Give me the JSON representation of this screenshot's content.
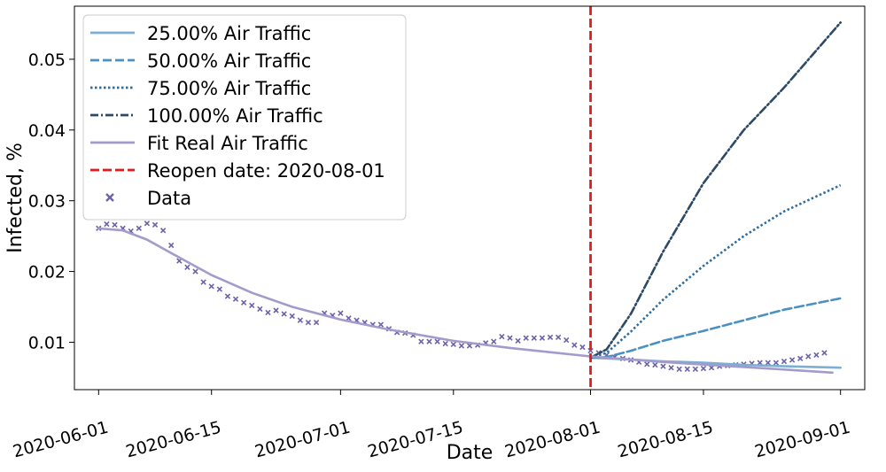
{
  "chart_data": {
    "type": "line",
    "title": "",
    "xlabel": "Date",
    "ylabel": "Infected, %",
    "xlim": [
      "2020-05-29",
      "2020-09-04"
    ],
    "ylim": [
      0.0033,
      0.0575
    ],
    "x_ticks": [
      "2020-06-01",
      "2020-06-15",
      "2020-07-01",
      "2020-07-15",
      "2020-08-01",
      "2020-08-15",
      "2020-09-01"
    ],
    "y_ticks": [
      0.01,
      0.02,
      0.03,
      0.04,
      0.05
    ],
    "y_tick_labels": [
      "0.01",
      "0.02",
      "0.03",
      "0.04",
      "0.05"
    ],
    "grid": false,
    "legend_position": "top-left",
    "reopen_date": "2020-08-01",
    "series": [
      {
        "name": "25.00% Air Traffic",
        "style": "solid",
        "color": "#7bafd4",
        "points": [
          [
            "2020-08-01",
            0.0078
          ],
          [
            "2020-08-05",
            0.0076
          ],
          [
            "2020-08-10",
            0.0073
          ],
          [
            "2020-08-15",
            0.0071
          ],
          [
            "2020-08-20",
            0.0068
          ],
          [
            "2020-08-25",
            0.0066
          ],
          [
            "2020-09-01",
            0.0064
          ]
        ]
      },
      {
        "name": "50.00% Air Traffic",
        "style": "dashed",
        "color": "#4a90c2",
        "points": [
          [
            "2020-08-01",
            0.0078
          ],
          [
            "2020-08-03",
            0.0079
          ],
          [
            "2020-08-06",
            0.0088
          ],
          [
            "2020-08-10",
            0.0102
          ],
          [
            "2020-08-15",
            0.0116
          ],
          [
            "2020-08-20",
            0.0131
          ],
          [
            "2020-08-25",
            0.0146
          ],
          [
            "2020-09-01",
            0.0162
          ]
        ]
      },
      {
        "name": "75.00% Air Traffic",
        "style": "dotted",
        "color": "#2e6d9e",
        "points": [
          [
            "2020-08-01",
            0.0078
          ],
          [
            "2020-08-03",
            0.0085
          ],
          [
            "2020-08-06",
            0.0115
          ],
          [
            "2020-08-10",
            0.016
          ],
          [
            "2020-08-15",
            0.0208
          ],
          [
            "2020-08-20",
            0.025
          ],
          [
            "2020-08-25",
            0.0285
          ],
          [
            "2020-09-01",
            0.0322
          ]
        ]
      },
      {
        "name": "100.00% Air Traffic",
        "style": "dashdot",
        "color": "#2c4a66",
        "points": [
          [
            "2020-08-01",
            0.0078
          ],
          [
            "2020-08-03",
            0.009
          ],
          [
            "2020-08-06",
            0.014
          ],
          [
            "2020-08-10",
            0.0228
          ],
          [
            "2020-08-15",
            0.0325
          ],
          [
            "2020-08-20",
            0.04
          ],
          [
            "2020-08-25",
            0.046
          ],
          [
            "2020-09-01",
            0.0552
          ]
        ]
      },
      {
        "name": "Fit Real Air Traffic",
        "style": "solid",
        "color": "#a39bcb",
        "points": [
          [
            "2020-06-01",
            0.0261
          ],
          [
            "2020-06-04",
            0.0258
          ],
          [
            "2020-06-07",
            0.0245
          ],
          [
            "2020-06-10",
            0.0226
          ],
          [
            "2020-06-15",
            0.0195
          ],
          [
            "2020-06-20",
            0.017
          ],
          [
            "2020-06-25",
            0.015
          ],
          [
            "2020-07-01",
            0.0132
          ],
          [
            "2020-07-07",
            0.0118
          ],
          [
            "2020-07-15",
            0.0102
          ],
          [
            "2020-07-22",
            0.0092
          ],
          [
            "2020-08-01",
            0.008
          ],
          [
            "2020-08-10",
            0.0072
          ],
          [
            "2020-08-20",
            0.0065
          ],
          [
            "2020-08-31",
            0.0057
          ]
        ]
      }
    ],
    "reopen_line": {
      "name": "Reopen date: 2020-08-01",
      "style": "dashed",
      "color": "#e8191b"
    },
    "data_series": {
      "name": "Data",
      "marker": "x",
      "color": "#6b63a8",
      "points": [
        [
          "2020-06-01",
          0.0261
        ],
        [
          "2020-06-02",
          0.0267
        ],
        [
          "2020-06-03",
          0.0266
        ],
        [
          "2020-06-04",
          0.0261
        ],
        [
          "2020-06-05",
          0.0257
        ],
        [
          "2020-06-06",
          0.0261
        ],
        [
          "2020-06-07",
          0.0268
        ],
        [
          "2020-06-08",
          0.0266
        ],
        [
          "2020-06-09",
          0.0258
        ],
        [
          "2020-06-10",
          0.0237
        ],
        [
          "2020-06-11",
          0.0215
        ],
        [
          "2020-06-12",
          0.0206
        ],
        [
          "2020-06-13",
          0.02
        ],
        [
          "2020-06-14",
          0.0185
        ],
        [
          "2020-06-15",
          0.0179
        ],
        [
          "2020-06-16",
          0.0175
        ],
        [
          "2020-06-17",
          0.0165
        ],
        [
          "2020-06-18",
          0.0161
        ],
        [
          "2020-06-19",
          0.0156
        ],
        [
          "2020-06-20",
          0.0152
        ],
        [
          "2020-06-21",
          0.0147
        ],
        [
          "2020-06-22",
          0.0142
        ],
        [
          "2020-06-23",
          0.0145
        ],
        [
          "2020-06-24",
          0.014
        ],
        [
          "2020-06-25",
          0.0137
        ],
        [
          "2020-06-26",
          0.0131
        ],
        [
          "2020-06-27",
          0.0128
        ],
        [
          "2020-06-28",
          0.0128
        ],
        [
          "2020-06-29",
          0.0141
        ],
        [
          "2020-06-30",
          0.0138
        ],
        [
          "2020-07-01",
          0.0141
        ],
        [
          "2020-07-02",
          0.0134
        ],
        [
          "2020-07-03",
          0.0131
        ],
        [
          "2020-07-04",
          0.0128
        ],
        [
          "2020-07-05",
          0.0125
        ],
        [
          "2020-07-06",
          0.0125
        ],
        [
          "2020-07-07",
          0.0119
        ],
        [
          "2020-07-08",
          0.0114
        ],
        [
          "2020-07-09",
          0.0113
        ],
        [
          "2020-07-10",
          0.011
        ],
        [
          "2020-07-11",
          0.0101
        ],
        [
          "2020-07-12",
          0.0101
        ],
        [
          "2020-07-13",
          0.0101
        ],
        [
          "2020-07-14",
          0.0098
        ],
        [
          "2020-07-15",
          0.0097
        ],
        [
          "2020-07-16",
          0.0095
        ],
        [
          "2020-07-17",
          0.0095
        ],
        [
          "2020-07-18",
          0.0096
        ],
        [
          "2020-07-19",
          0.0099
        ],
        [
          "2020-07-20",
          0.0101
        ],
        [
          "2020-07-21",
          0.0108
        ],
        [
          "2020-07-22",
          0.0106
        ],
        [
          "2020-07-23",
          0.0102
        ],
        [
          "2020-07-24",
          0.0106
        ],
        [
          "2020-07-25",
          0.0106
        ],
        [
          "2020-07-26",
          0.0106
        ],
        [
          "2020-07-27",
          0.0107
        ],
        [
          "2020-07-28",
          0.0107
        ],
        [
          "2020-07-29",
          0.0103
        ],
        [
          "2020-07-30",
          0.0096
        ],
        [
          "2020-07-31",
          0.0093
        ],
        [
          "2020-08-01",
          0.0088
        ],
        [
          "2020-08-02",
          0.0085
        ],
        [
          "2020-08-03",
          0.0082
        ],
        [
          "2020-08-04",
          0.0079
        ],
        [
          "2020-08-05",
          0.0077
        ],
        [
          "2020-08-06",
          0.0075
        ],
        [
          "2020-08-07",
          0.0072
        ],
        [
          "2020-08-08",
          0.0069
        ],
        [
          "2020-08-09",
          0.0068
        ],
        [
          "2020-08-10",
          0.0066
        ],
        [
          "2020-08-11",
          0.0064
        ],
        [
          "2020-08-12",
          0.0062
        ],
        [
          "2020-08-13",
          0.0062
        ],
        [
          "2020-08-14",
          0.0062
        ],
        [
          "2020-08-15",
          0.0063
        ],
        [
          "2020-08-16",
          0.0064
        ],
        [
          "2020-08-17",
          0.0066
        ],
        [
          "2020-08-18",
          0.0067
        ],
        [
          "2020-08-19",
          0.0068
        ],
        [
          "2020-08-20",
          0.0069
        ],
        [
          "2020-08-21",
          0.007
        ],
        [
          "2020-08-22",
          0.0071
        ],
        [
          "2020-08-23",
          0.0071
        ],
        [
          "2020-08-24",
          0.0071
        ],
        [
          "2020-08-25",
          0.0073
        ],
        [
          "2020-08-26",
          0.0075
        ],
        [
          "2020-08-27",
          0.0077
        ],
        [
          "2020-08-28",
          0.008
        ],
        [
          "2020-08-29",
          0.0082
        ],
        [
          "2020-08-30",
          0.0085
        ]
      ]
    },
    "legend": [
      {
        "label": "25.00% Air Traffic",
        "kind": "line",
        "style": "solid",
        "color": "#7bafd4"
      },
      {
        "label": "50.00% Air Traffic",
        "kind": "line",
        "style": "dashed",
        "color": "#4a90c2"
      },
      {
        "label": "75.00% Air Traffic",
        "kind": "line",
        "style": "dotted",
        "color": "#2e6d9e"
      },
      {
        "label": "100.00% Air Traffic",
        "kind": "line",
        "style": "dashdot",
        "color": "#2c4a66"
      },
      {
        "label": "Fit Real Air Traffic",
        "kind": "line",
        "style": "solid",
        "color": "#a39bcb"
      },
      {
        "label": "Reopen date: 2020-08-01",
        "kind": "line",
        "style": "dashed",
        "color": "#e8191b"
      },
      {
        "label": "Data",
        "kind": "marker",
        "style": "x",
        "color": "#6b63a8"
      }
    ]
  }
}
